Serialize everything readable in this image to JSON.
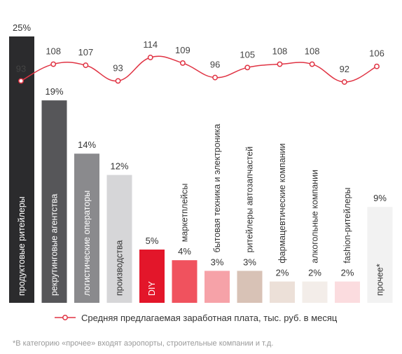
{
  "chart_data": {
    "type": "bar",
    "categories": [
      "продуктовые ритейлеры",
      "рекрутинговые агентства",
      "логистические операторы",
      "производства",
      "DIY",
      "маркетплейсы",
      "бытовая техника и электроника",
      "ритейлеры автозапчастей",
      "фармацевтические компании",
      "алкогольные компании",
      "fashion-ритейлеры",
      "прочее*"
    ],
    "values": [
      25,
      19,
      14,
      12,
      5,
      4,
      3,
      3,
      2,
      2,
      2,
      9
    ],
    "value_labels": [
      "25%",
      "19%",
      "14%",
      "12%",
      "5%",
      "4%",
      "3%",
      "3%",
      "2%",
      "2%",
      "2%",
      "9%"
    ],
    "bar_colors": [
      "#2b2b2d",
      "#565659",
      "#8a8a8d",
      "#d6d6d8",
      "#e3162a",
      "#f0525e",
      "#f6a2a8",
      "#d8c2b6",
      "#ece0d8",
      "#f3ede9",
      "#fbdcdf",
      "#f2f2f2"
    ],
    "series": [
      {
        "name": "Средняя предлагаемая заработная плата, тыс. руб. в месяц",
        "type": "line",
        "values": [
          93,
          108,
          107,
          93,
          114,
          109,
          96,
          105,
          108,
          108,
          92,
          106
        ],
        "color": "#e03343"
      }
    ],
    "footnote": "*В категорию «прочее» входят аэропорты, строительные компании и т.д."
  }
}
